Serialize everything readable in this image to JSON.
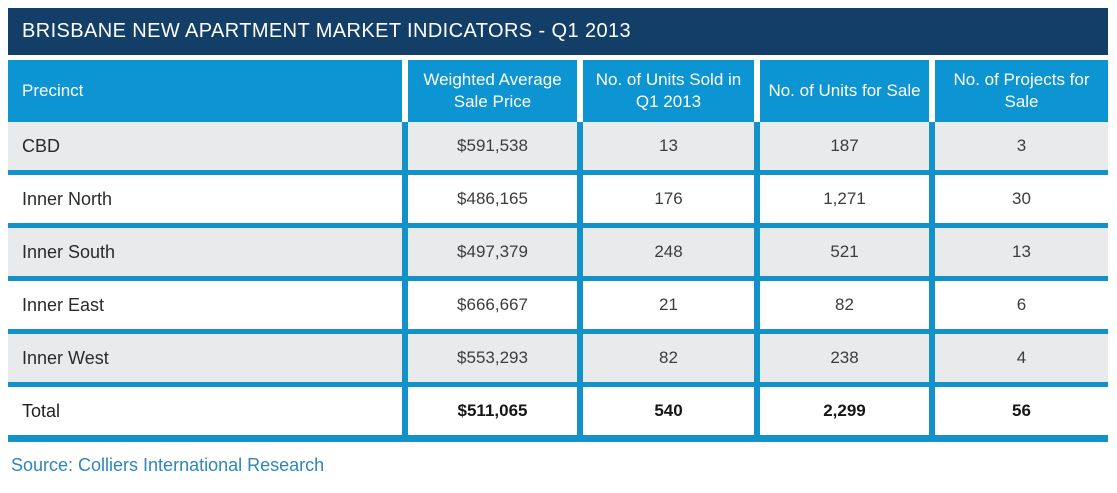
{
  "title": "BRISBANE NEW APARTMENT MARKET INDICATORS - Q1 2013",
  "source_note": "Source: Colliers International Research",
  "colors": {
    "title_bar_navy": "#133E68",
    "header_blue": "#0D94D2",
    "grid_line_blue": "#1292C8",
    "alt_row_gray": "#E9EAEB",
    "source_text_blue": "#2E86BC"
  },
  "table": {
    "headers": [
      "Precinct",
      "Weighted Average Sale Price",
      "No. of Units Sold in Q1 2013",
      "No. of Units for Sale",
      "No. of Projects for Sale"
    ],
    "rows": [
      {
        "precinct": "CBD",
        "price": "$591,538",
        "units_sold": "13",
        "units_for_sale": "187",
        "projects": "3"
      },
      {
        "precinct": "Inner North",
        "price": "$486,165",
        "units_sold": "176",
        "units_for_sale": "1,271",
        "projects": "30"
      },
      {
        "precinct": "Inner South",
        "price": "$497,379",
        "units_sold": "248",
        "units_for_sale": "521",
        "projects": "13"
      },
      {
        "precinct": "Inner East",
        "price": "$666,667",
        "units_sold": "21",
        "units_for_sale": "82",
        "projects": "6"
      },
      {
        "precinct": "Inner West",
        "price": "$553,293",
        "units_sold": "82",
        "units_for_sale": "238",
        "projects": "4"
      }
    ],
    "total": {
      "precinct": "Total",
      "price": "$511,065",
      "units_sold": "540",
      "units_for_sale": "2,299",
      "projects": "56"
    }
  },
  "chart_data": {
    "type": "table",
    "title": "BRISBANE NEW APARTMENT MARKET INDICATORS - Q1 2013",
    "columns": [
      "Precinct",
      "Weighted Average Sale Price",
      "No. of Units Sold in Q1 2013",
      "No. of Units for Sale",
      "No. of Projects for Sale"
    ],
    "rows": [
      [
        "CBD",
        "$591,538",
        13,
        187,
        3
      ],
      [
        "Inner North",
        "$486,165",
        176,
        1271,
        30
      ],
      [
        "Inner South",
        "$497,379",
        248,
        521,
        13
      ],
      [
        "Inner East",
        "$666,667",
        21,
        82,
        6
      ],
      [
        "Inner West",
        "$553,293",
        82,
        238,
        4
      ]
    ],
    "total_row": [
      "Total",
      "$511,065",
      540,
      2299,
      56
    ],
    "source": "Source: Colliers International Research"
  }
}
